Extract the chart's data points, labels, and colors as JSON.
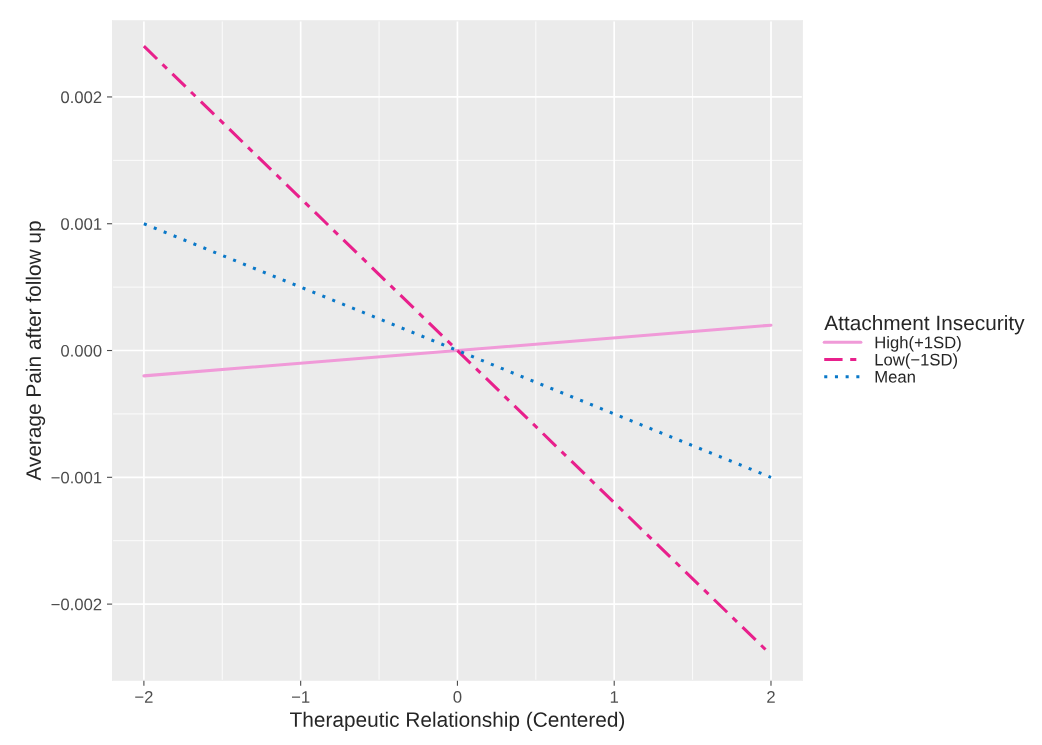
{
  "chart_data": {
    "type": "line",
    "xlabel": "Therapeutic Relationship (Centered)",
    "ylabel": "Average Pain after follow up",
    "legend_title": "Attachment Insecurity",
    "x": [
      -2,
      2
    ],
    "series": [
      {
        "name": "High(+1SD)",
        "color": "#f09ad8",
        "values": [
          -0.0002,
          0.0002
        ],
        "line_style": "solid"
      },
      {
        "name": "Low(−1SD)",
        "color": "#e8208c",
        "values": [
          0.0024,
          -0.0024
        ],
        "line_style": "dashed"
      },
      {
        "name": "Mean",
        "color": "#0a78c8",
        "values": [
          0.001,
          -0.001
        ],
        "line_style": "dotted"
      }
    ],
    "xlim": [
      -2.2,
      2.2
    ],
    "xticks": [
      {
        "value": -2,
        "label": "−2"
      },
      {
        "value": -1,
        "label": "−1"
      },
      0,
      1,
      2
    ],
    "ylim": [
      -0.0026,
      0.0026
    ],
    "yticks": [
      {
        "value": -0.002,
        "label": "−0.002"
      },
      {
        "value": -0.001,
        "label": "−0.001"
      },
      {
        "value": 0,
        "label": "0.000"
      },
      {
        "value": 0.001,
        "label": "0.001"
      },
      {
        "value": 0.002,
        "label": "0.002"
      }
    ],
    "grid": true,
    "legend": "right"
  }
}
